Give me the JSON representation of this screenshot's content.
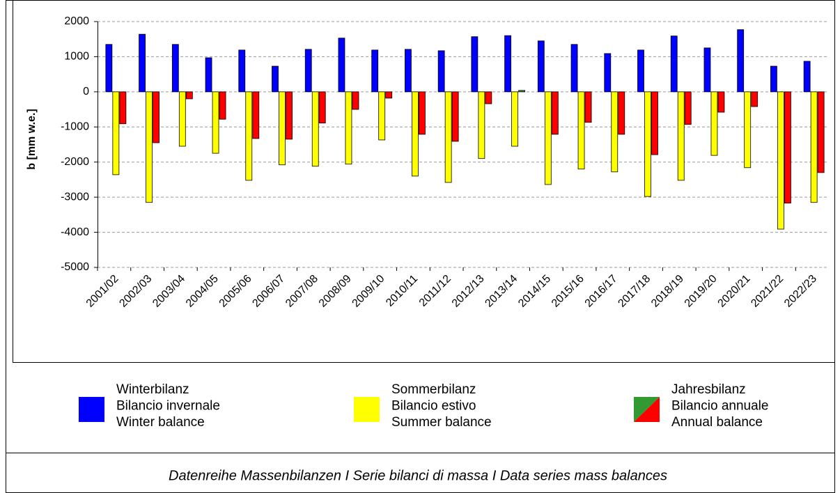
{
  "chart_data": {
    "type": "bar",
    "ylabel": "b  [mm w.e.]",
    "caption": "Datenreihe Massenbilanzen I Serie bilanci di massa I Data series mass balances",
    "categories": [
      "2001/02",
      "2002/03",
      "2003/04",
      "2004/05",
      "2005/06",
      "2006/07",
      "2007/08",
      "2008/09",
      "2009/10",
      "2010/11",
      "2011/12",
      "2012/13",
      "2013/14",
      "2014/15",
      "2015/16",
      "2016/17",
      "2017/18",
      "2018/19",
      "2019/20",
      "2020/21",
      "2021/22",
      "2022/23"
    ],
    "series": [
      {
        "name": "Winter balance",
        "legend_labels": [
          "Winterbilanz",
          "Bilancio invernale",
          "Winter balance"
        ],
        "color": "#0000ff",
        "values": [
          1350,
          1640,
          1350,
          970,
          1190,
          730,
          1210,
          1530,
          1190,
          1210,
          1170,
          1570,
          1600,
          1450,
          1350,
          1090,
          1190,
          1590,
          1250,
          1770,
          730,
          870
        ]
      },
      {
        "name": "Summer balance",
        "legend_labels": [
          "Sommerbilanz",
          "Bilancio estivo",
          "Summer balance"
        ],
        "color": "#ffff00",
        "values": [
          -2360,
          -3150,
          -1550,
          -1750,
          -2520,
          -2080,
          -2120,
          -2060,
          -1370,
          -2400,
          -2580,
          -1900,
          -1550,
          -2640,
          -2200,
          -2280,
          -2980,
          -2520,
          -1810,
          -2160,
          -3910,
          -3150
        ]
      },
      {
        "name": "Annual balance",
        "legend_labels": [
          "Jahresbilanz",
          "Bilancio annuale",
          "Annual balance"
        ],
        "color": "#ff0000",
        "positive_color": "#339933",
        "values": [
          -910,
          -1450,
          -200,
          -780,
          -1330,
          -1350,
          -890,
          -500,
          -180,
          -1210,
          -1410,
          -340,
          40,
          -1210,
          -870,
          -1210,
          -1790,
          -930,
          -580,
          -420,
          -3170,
          -2300
        ]
      }
    ],
    "ylim": [
      -5000,
      2000
    ],
    "yticks": [
      -5000,
      -4000,
      -3000,
      -2000,
      -1000,
      0,
      1000,
      2000
    ],
    "grid": true
  }
}
